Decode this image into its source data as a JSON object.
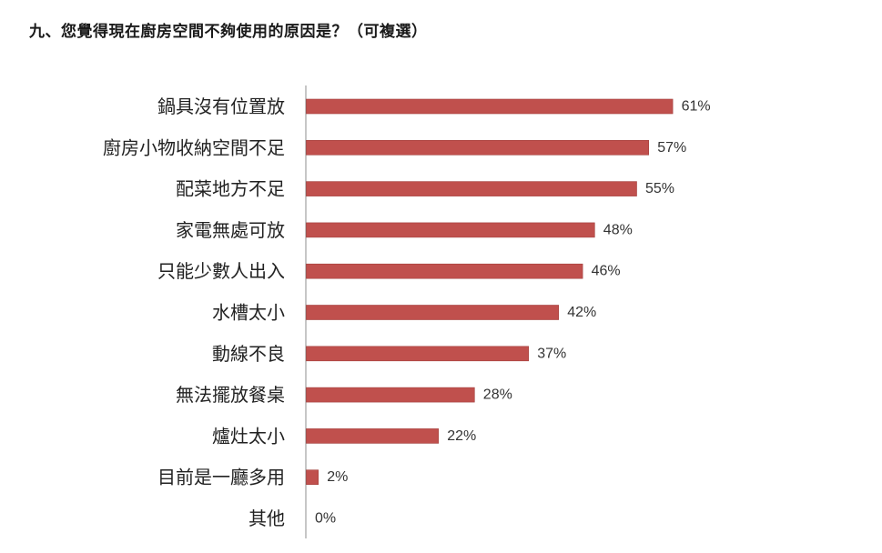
{
  "question": {
    "title": "九、您覺得現在廚房空間不夠使用的原因是？（可複選）"
  },
  "chart_data": {
    "type": "bar",
    "orientation": "horizontal",
    "categories": [
      "鍋具沒有位置放",
      "廚房小物收納空間不足",
      "配菜地方不足",
      "家電無處可放",
      "只能少數人出入",
      "水槽太小",
      "動線不良",
      "無法擺放餐桌",
      "爐灶太小",
      "目前是一廳多用",
      "其他"
    ],
    "values": [
      61,
      57,
      55,
      48,
      46,
      42,
      37,
      28,
      22,
      2,
      0
    ],
    "data_labels": [
      "61%",
      "57%",
      "55%",
      "48%",
      "46%",
      "42%",
      "37%",
      "28%",
      "22%",
      "2%",
      "0%"
    ],
    "unit": "%",
    "xlim": [
      0,
      100
    ],
    "grid": false,
    "legend": "none",
    "colors": {
      "bar_fill": "#c0504d",
      "bar_stroke": "#a33f3c",
      "axis": "#8c8c8c"
    }
  }
}
